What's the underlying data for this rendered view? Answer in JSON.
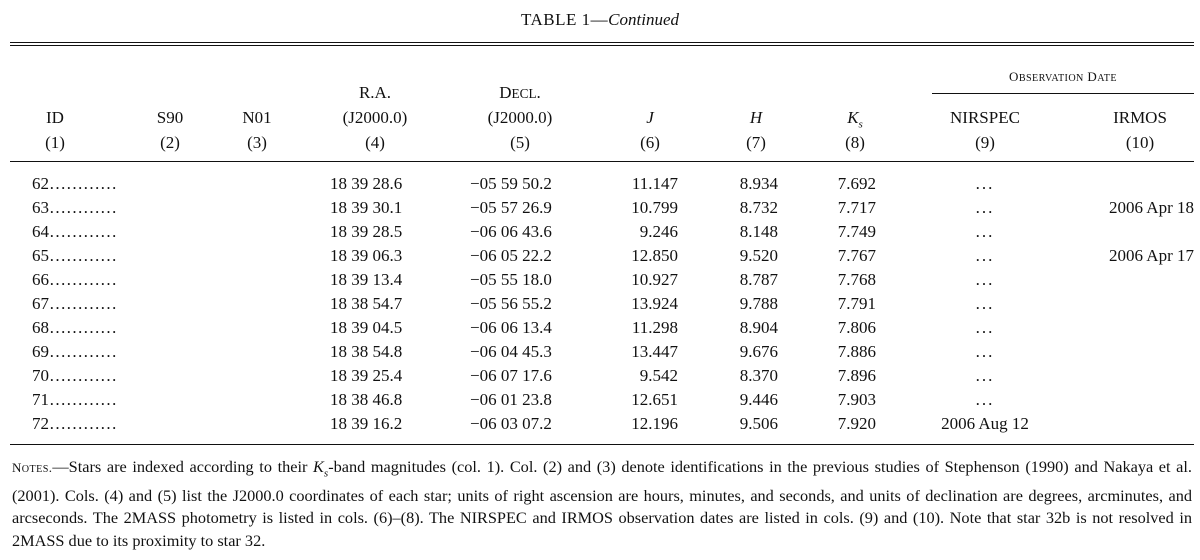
{
  "table": {
    "title": "TABLE 1",
    "dash": "—",
    "continued": "Continued",
    "observation_header": "Observation Date",
    "columns": [
      {
        "name": "ID",
        "num": "(1)"
      },
      {
        "name": "S90",
        "num": "(2)"
      },
      {
        "name": "N01",
        "num": "(3)"
      },
      {
        "name": "R.A.",
        "sub": "(J2000.0)",
        "num": "(4)"
      },
      {
        "name": "Decl.",
        "sub": "(J2000.0)",
        "num": "(5)"
      },
      {
        "name": "J",
        "num": "(6)"
      },
      {
        "name": "H",
        "num": "(7)"
      },
      {
        "name": "K",
        "subscript": "s",
        "num": "(8)"
      },
      {
        "name": "NIRSPEC",
        "num": "(9)"
      },
      {
        "name": "IRMOS",
        "num": "(10)"
      }
    ],
    "rows": [
      {
        "id": "62…………",
        "ra": "18 39 28.6",
        "dec": "−05 59 50.2",
        "j": "11.147",
        "h": "8.934",
        "k": "7.692",
        "nirspec": "...",
        "irmos": ""
      },
      {
        "id": "63…………",
        "ra": "18 39 30.1",
        "dec": "−05 57 26.9",
        "j": "10.799",
        "h": "8.732",
        "k": "7.717",
        "nirspec": "...",
        "irmos": "2006 Apr 18"
      },
      {
        "id": "64…………",
        "ra": "18 39 28.5",
        "dec": "−06 06 43.6",
        "j": "9.246",
        "h": "8.148",
        "k": "7.749",
        "nirspec": "...",
        "irmos": ""
      },
      {
        "id": "65…………",
        "ra": "18 39 06.3",
        "dec": "−06 05 22.2",
        "j": "12.850",
        "h": "9.520",
        "k": "7.767",
        "nirspec": "...",
        "irmos": "2006 Apr 17"
      },
      {
        "id": "66…………",
        "ra": "18 39 13.4",
        "dec": "−05 55 18.0",
        "j": "10.927",
        "h": "8.787",
        "k": "7.768",
        "nirspec": "...",
        "irmos": ""
      },
      {
        "id": "67…………",
        "ra": "18 38 54.7",
        "dec": "−05 56 55.2",
        "j": "13.924",
        "h": "9.788",
        "k": "7.791",
        "nirspec": "...",
        "irmos": ""
      },
      {
        "id": "68…………",
        "ra": "18 39 04.5",
        "dec": "−06 06 13.4",
        "j": "11.298",
        "h": "8.904",
        "k": "7.806",
        "nirspec": "...",
        "irmos": ""
      },
      {
        "id": "69…………",
        "ra": "18 38 54.8",
        "dec": "−06 04 45.3",
        "j": "13.447",
        "h": "9.676",
        "k": "7.886",
        "nirspec": "...",
        "irmos": ""
      },
      {
        "id": "70…………",
        "ra": "18 39 25.4",
        "dec": "−06 07 17.6",
        "j": "9.542",
        "h": "8.370",
        "k": "7.896",
        "nirspec": "...",
        "irmos": ""
      },
      {
        "id": "71…………",
        "ra": "18 38 46.8",
        "dec": "−06 01 23.8",
        "j": "12.651",
        "h": "9.446",
        "k": "7.903",
        "nirspec": "...",
        "irmos": ""
      },
      {
        "id": "72…………",
        "ra": "18 39 16.2",
        "dec": "−06 03 07.2",
        "j": "12.196",
        "h": "9.506",
        "k": "7.920",
        "nirspec": "2006 Aug 12",
        "irmos": ""
      }
    ]
  },
  "notes": {
    "label": "Notes.",
    "dash": "—",
    "text_1": "Stars are indexed according to their ",
    "k": "K",
    "k_sub": "s",
    "text_2": "-band magnitudes (col. 1). Col. (2) and (3) denote identifications in the previous studies of Stephenson (1990) and Nakaya et al. (2001). Cols. (4) and (5) list the J2000.0 coordinates of each star; units of right ascension are hours, minutes, and seconds, and units of declination are degrees, arcminutes, and arcseconds. The 2MASS photometry is listed in cols. (6)–(8). The NIRSPEC and IRMOS observation dates are listed in cols. (9) and (10). Note that star 32b is not resolved in 2MASS due to its proximity to star 32."
  }
}
